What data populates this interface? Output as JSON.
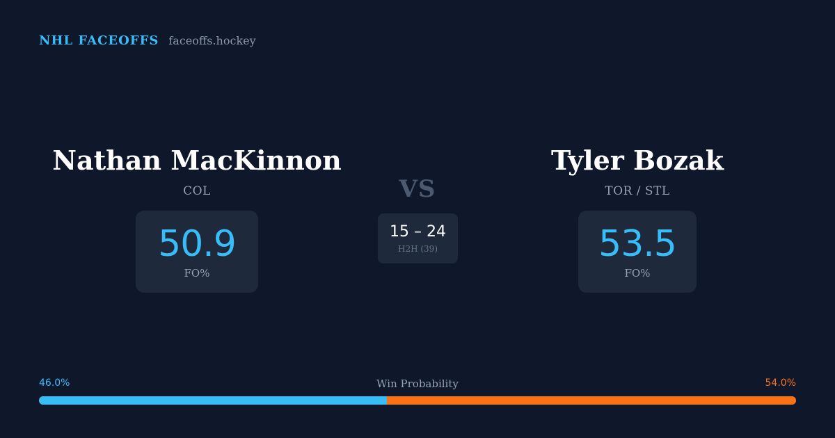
{
  "brand": {
    "title": "NHL FACEOFFS",
    "domain": "faceoffs.hockey"
  },
  "players": {
    "left": {
      "name": "Nathan MacKinnon",
      "team": "COL",
      "stat_value": "50.9",
      "stat_label": "FO%"
    },
    "right": {
      "name": "Tyler Bozak",
      "team": "TOR / STL",
      "stat_value": "53.5",
      "stat_label": "FO%"
    }
  },
  "matchup": {
    "vs_label": "VS",
    "h2h_score": "15 – 24",
    "h2h_label": "H2H (39)"
  },
  "win_probability": {
    "title": "Win Probability",
    "left_label": "46.0%",
    "right_label": "54.0%",
    "left_fraction": 0.46,
    "right_fraction": 0.54
  },
  "colors": {
    "background": "#0f172a",
    "card": "#1e293b",
    "accent_blue": "#38bdf8",
    "accent_orange": "#f97316",
    "muted_text": "#94a3b8"
  }
}
